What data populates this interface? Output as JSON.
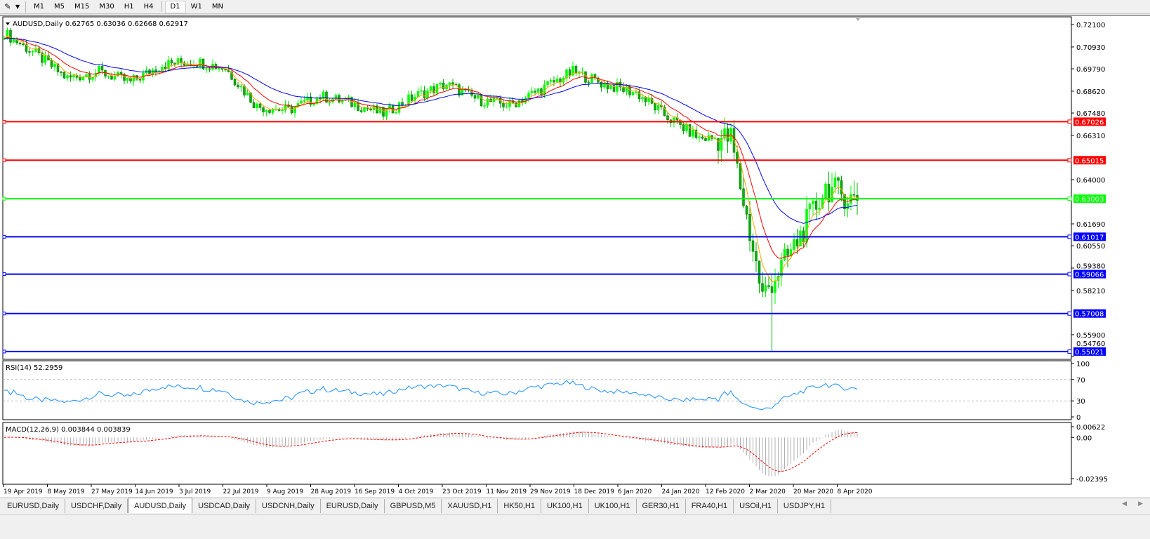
{
  "toolbar": {
    "timeframes": [
      "M1",
      "M5",
      "M15",
      "M30",
      "H1",
      "H4",
      "D1",
      "W1",
      "MN"
    ],
    "active": "D1"
  },
  "chart": {
    "title": "AUDUSD,Daily  0.62765 0.63036 0.62668 0.62917",
    "price_ticks": [
      "0.72100",
      "0.70930",
      "0.69790",
      "0.68620",
      "0.67480",
      "0.66310",
      "0.64000",
      "0.61690",
      "0.60550",
      "0.59380",
      "0.58210",
      "0.55900",
      "0.54760"
    ],
    "price_range": [
      0.5476,
      0.721
    ],
    "levels": [
      {
        "price": "0.67026",
        "color": "#ff0000"
      },
      {
        "price": "0.65015",
        "color": "#ff0000"
      },
      {
        "price": "0.63003",
        "color": "#00ff00"
      },
      {
        "price": "0.61017",
        "color": "#0000ff"
      },
      {
        "price": "0.59066",
        "color": "#0000ff"
      },
      {
        "price": "0.57008",
        "color": "#0000ff"
      },
      {
        "price": "0.55021",
        "color": "#0000ff"
      }
    ],
    "close_path_every_10_bars": [
      0.7166,
      0.7056,
      0.6928,
      0.6964,
      0.6909,
      0.7001,
      0.7019,
      0.6983,
      0.6782,
      0.6763,
      0.6836,
      0.6799,
      0.6744,
      0.6836,
      0.6898,
      0.6818,
      0.6788,
      0.6873,
      0.6964,
      0.6898,
      0.6854,
      0.6726,
      0.6616,
      0.6616,
      0.5791,
      0.6048,
      0.636,
      0.62917
    ],
    "period_low": 0.5502,
    "colors": {
      "bull": "#00ff00",
      "bear": "#00b000",
      "ma_fast": "#ff0000",
      "ma_slow": "#0000ff",
      "ma_short": "#ffa500"
    },
    "dates": [
      "19 Apr 2019",
      "8 May 2019",
      "27 May 2019",
      "14 Jun 2019",
      "3 Jul 2019",
      "22 Jul 2019",
      "9 Aug 2019",
      "28 Aug 2019",
      "16 Sep 2019",
      "4 Oct 2019",
      "23 Oct 2019",
      "11 Nov 2019",
      "29 Nov 2019",
      "18 Dec 2019",
      "6 Jan 2020",
      "24 Jan 2020",
      "12 Feb 2020",
      "2 Mar 2020",
      "20 Mar 2020",
      "8 Apr 2020"
    ]
  },
  "rsi": {
    "title": "RSI(14) 52.2959",
    "ticks": [
      "100",
      "70",
      "30",
      "0"
    ],
    "color": "#1e90ff"
  },
  "macd": {
    "title": "MACD(12,26,9) 0.003844 0.003839",
    "ticks": [
      "0.00622",
      "0.00",
      "-0.02395"
    ]
  },
  "tabs": [
    "EURUSD,Daily",
    "USDCHF,Daily",
    "AUDUSD,Daily",
    "USDCAD,Daily",
    "USDCNH,Daily",
    "EURUSD,Daily",
    "GBPUSD,M5",
    "XAUUSD,H1",
    "HK50,H1",
    "UK100,H1",
    "UK100,H1",
    "GER30,H1",
    "FRA40,H1",
    "USOil,H1",
    "USDJPY,H1"
  ],
  "active_tab": "AUDUSD,Daily"
}
